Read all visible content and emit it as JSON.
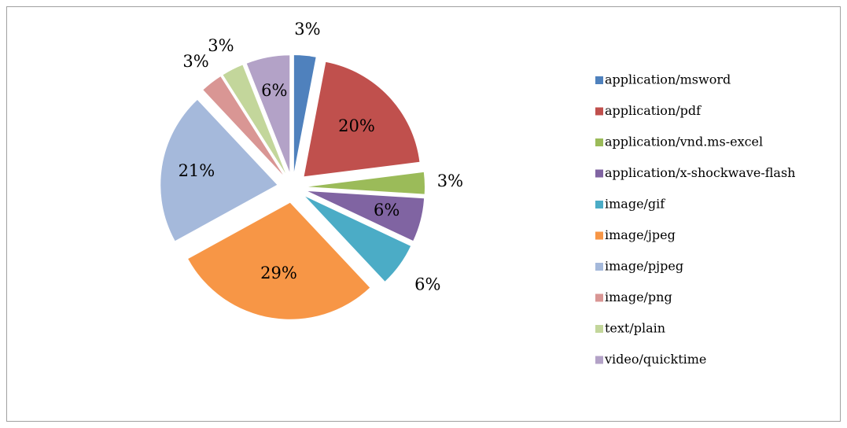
{
  "chart_data": {
    "type": "pie",
    "categories": [
      "application/msword",
      "application/pdf",
      "application/vnd.ms-excel",
      "application/x-shockwave-flash",
      "image/gif",
      "image/jpeg",
      "image/pjpeg",
      "image/png",
      "text/plain",
      "video/quicktime"
    ],
    "values": [
      3,
      20,
      3,
      6,
      6,
      29,
      21,
      3,
      3,
      6
    ],
    "value_labels": [
      "3%",
      "20%",
      "3%",
      "6%",
      "6%",
      "29%",
      "21%",
      "3%",
      "3%",
      "6%"
    ],
    "colors": [
      "#4f81bd",
      "#c0504d",
      "#9bbb59",
      "#8064a2",
      "#4bacc6",
      "#f79646",
      "#a5b9db",
      "#d99694",
      "#c3d69b",
      "#b3a2c7"
    ],
    "legend": "right"
  }
}
